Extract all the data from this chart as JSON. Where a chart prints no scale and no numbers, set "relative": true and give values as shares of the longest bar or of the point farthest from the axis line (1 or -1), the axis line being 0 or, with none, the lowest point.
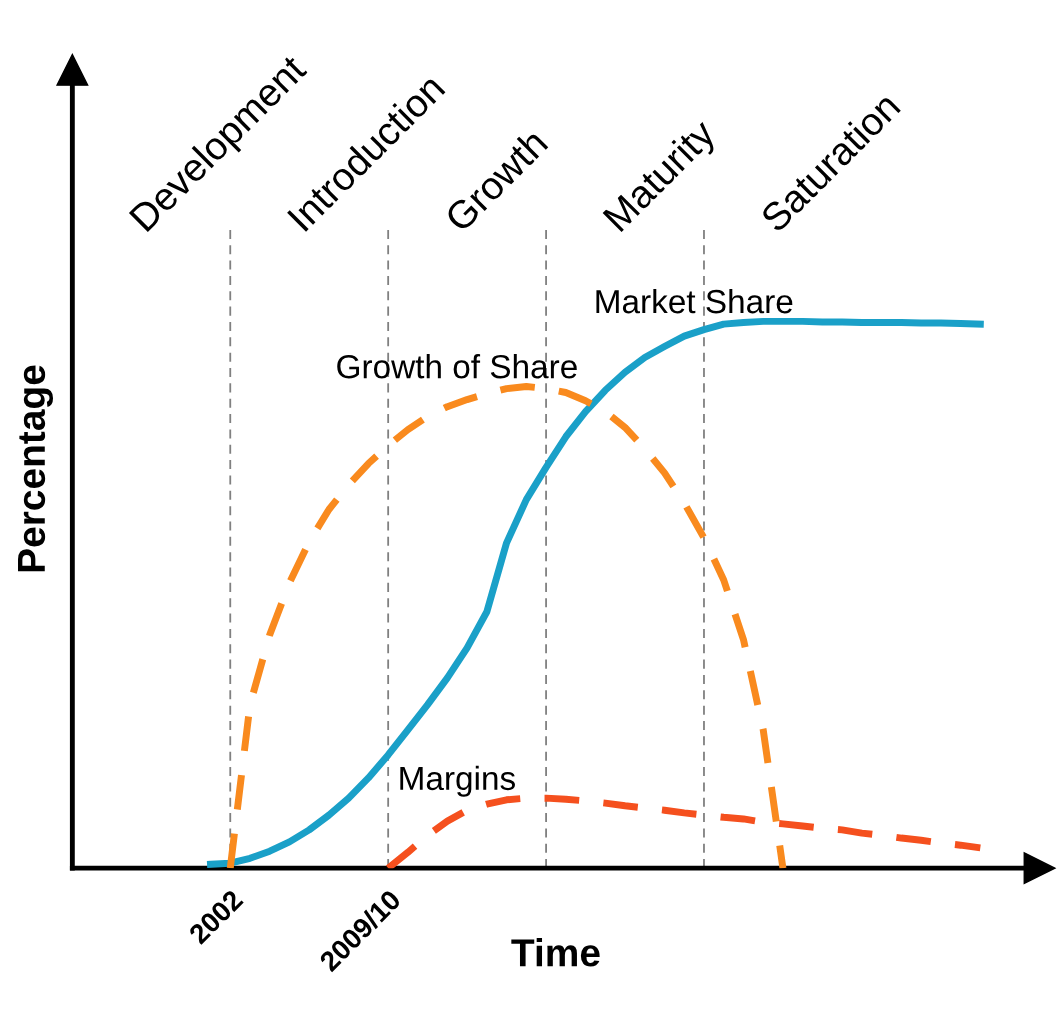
{
  "chart_data": {
    "type": "line",
    "relative": true,
    "xlabel": "Time",
    "ylabel": "Percentage",
    "categories": [
      null,
      null,
      null,
      null,
      null,
      null,
      null,
      null,
      "2002",
      null,
      null,
      null,
      null,
      null,
      null,
      null,
      "2009/10",
      null,
      null,
      null,
      null,
      null,
      null,
      null,
      null,
      null,
      null,
      null,
      null,
      null,
      null,
      null,
      null,
      null,
      null,
      null,
      null,
      null,
      null,
      null,
      null,
      null,
      null,
      null,
      null,
      null,
      null,
      null,
      null,
      null
    ],
    "annotations": [
      "Development",
      "Introduction",
      "Growth",
      "Maturity",
      "Saturation"
    ],
    "grid": "x",
    "legend": false,
    "series": [
      {
        "name": "Market Share",
        "color": "#1aa0c8",
        "line_style": "solid",
        "values": [
          null,
          null,
          null,
          null,
          null,
          null,
          null,
          0.007,
          0.009,
          0.018,
          0.031,
          0.048,
          0.07,
          0.097,
          0.128,
          0.165,
          0.207,
          0.253,
          0.299,
          0.348,
          0.403,
          0.469,
          0.595,
          0.674,
          0.733,
          0.789,
          0.835,
          0.874,
          0.907,
          0.934,
          0.954,
          0.973,
          0.985,
          0.995,
          0.998,
          1,
          1,
          1,
          0.999,
          0.999,
          0.998,
          0.998,
          0.998,
          0.997,
          0.997,
          0.996,
          0.995,
          null,
          null,
          null
        ]
      },
      {
        "name": "Growth of Share",
        "color": "#f98a1e",
        "line_style": "dashed",
        "values": [
          null,
          null,
          null,
          null,
          null,
          null,
          null,
          null,
          0,
          0.299,
          0.427,
          0.522,
          0.597,
          0.656,
          0.701,
          0.74,
          0.773,
          0.802,
          0.826,
          0.844,
          0.857,
          0.868,
          0.877,
          0.881,
          0.877,
          0.87,
          0.855,
          0.835,
          0.806,
          0.767,
          0.723,
          0.668,
          0.604,
          0.527,
          0.418,
          0.253,
          0,
          null,
          null,
          null,
          null,
          null,
          null,
          null,
          null,
          null,
          null,
          null,
          null,
          null
        ]
      },
      {
        "name": "Margins",
        "color": "#f5501e",
        "line_style": "dashed",
        "values": [
          null,
          null,
          null,
          null,
          null,
          null,
          null,
          null,
          null,
          null,
          null,
          null,
          null,
          null,
          null,
          null,
          0,
          0.029,
          0.06,
          0.086,
          0.106,
          0.117,
          0.125,
          0.128,
          0.128,
          0.126,
          0.123,
          0.119,
          0.114,
          0.11,
          0.106,
          0.101,
          0.097,
          0.093,
          0.09,
          0.084,
          0.081,
          0.077,
          0.073,
          0.07,
          0.064,
          0.06,
          0.055,
          0.051,
          0.046,
          0.042,
          0.037,
          null,
          null,
          null
        ]
      }
    ]
  }
}
